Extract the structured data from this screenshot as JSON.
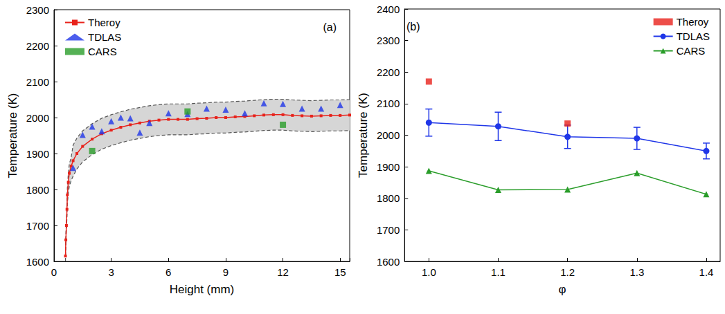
{
  "chart_data": [
    {
      "type": "line",
      "title": "(a)",
      "xlabel": "Height (mm)",
      "ylabel": "Temperature (K)",
      "xlim": [
        0,
        15.5
      ],
      "xticks": [
        0,
        3,
        6,
        9,
        12,
        15
      ],
      "ylim": [
        1600,
        2300
      ],
      "yticks": [
        1600,
        1700,
        1800,
        1900,
        2000,
        2100,
        2200,
        2300
      ],
      "grid": false,
      "legend": "upper left",
      "series": [
        {
          "name": "Theroy",
          "type": "line",
          "color": "#e8221b",
          "marker": "square",
          "line_style": "solid",
          "x": [
            0.6,
            0.62,
            0.65,
            0.68,
            0.7,
            0.75,
            0.8,
            0.9,
            1.0,
            1.2,
            1.5,
            2,
            2.5,
            3,
            3.5,
            4,
            4.5,
            5,
            5.5,
            6,
            6.5,
            7,
            7.5,
            8,
            8.5,
            9,
            9.5,
            10,
            10.5,
            11,
            11.5,
            12,
            12.5,
            13,
            13.5,
            14,
            14.5,
            15,
            15.5
          ],
          "values": [
            1615,
            1660,
            1700,
            1745,
            1785,
            1820,
            1845,
            1865,
            1880,
            1900,
            1920,
            1940,
            1955,
            1965,
            1973,
            1980,
            1985,
            1990,
            1993,
            1995,
            1995,
            1995,
            1997,
            1998,
            2000,
            2000,
            2002,
            2003,
            2005,
            2007,
            2008,
            2008,
            2006,
            2005,
            2004,
            2005,
            2006,
            2006,
            2007
          ],
          "band_lower": [
            1600,
            1645,
            1685,
            1725,
            1760,
            1790,
            1808,
            1825,
            1837,
            1857,
            1877,
            1897,
            1912,
            1922,
            1930,
            1937,
            1942,
            1947,
            1950,
            1952,
            1952,
            1952,
            1954,
            1955,
            1957,
            1957,
            1959,
            1960,
            1962,
            1964,
            1965,
            1965,
            1963,
            1962,
            1961,
            1962,
            1963,
            1963,
            1964
          ],
          "band_upper": [
            1630,
            1675,
            1715,
            1765,
            1805,
            1845,
            1870,
            1890,
            1923,
            1943,
            1963,
            1983,
            1998,
            2008,
            2016,
            2023,
            2028,
            2033,
            2036,
            2038,
            2038,
            2038,
            2040,
            2041,
            2043,
            2043,
            2045,
            2046,
            2048,
            2050,
            2051,
            2051,
            2049,
            2048,
            2047,
            2048,
            2049,
            2049,
            2050
          ]
        },
        {
          "name": "TDLAS",
          "type": "scatter",
          "color": "#1f36e8",
          "marker": "triangle",
          "x": [
            1,
            1.5,
            2,
            2.5,
            3,
            3.5,
            4,
            4.5,
            5,
            6,
            7,
            8,
            9,
            10,
            11,
            12,
            13,
            14,
            15
          ],
          "values": [
            1860,
            1952,
            1975,
            1962,
            1990,
            2000,
            1998,
            1958,
            1985,
            2012,
            2010,
            2025,
            2022,
            2012,
            2040,
            2038,
            2025,
            2025,
            2035
          ]
        },
        {
          "name": "CARS",
          "type": "scatter",
          "color": "#2a9d2a",
          "marker": "square",
          "x": [
            2,
            7,
            12
          ],
          "values": [
            1907,
            2017,
            1980
          ]
        }
      ]
    },
    {
      "type": "line",
      "title": "(b)",
      "xlabel": "φ",
      "ylabel": "Temperature (K)",
      "xlim": [
        0.965,
        1.42
      ],
      "xticks": [
        {
          "value": 1.0,
          "label": "1.0"
        },
        1.1,
        1.2,
        1.3,
        1.4
      ],
      "ylim": [
        1600,
        2400
      ],
      "yticks": [
        1600,
        1700,
        1800,
        1900,
        2000,
        2100,
        2200,
        2300,
        2400
      ],
      "grid": false,
      "legend": "upper right",
      "series": [
        {
          "name": "Theroy",
          "type": "scatter",
          "color": "#e8221b",
          "marker": "square",
          "x": [
            1.0,
            1.2
          ],
          "values": [
            2170,
            2037
          ]
        },
        {
          "name": "TDLAS",
          "type": "line",
          "color": "#1f36e8",
          "marker": "circle",
          "line_style": "solid",
          "x": [
            1.0,
            1.1,
            1.2,
            1.3,
            1.4
          ],
          "values": [
            2040,
            2028,
            1995,
            1990,
            1950
          ],
          "errors": [
            43,
            45,
            37,
            35,
            25
          ]
        },
        {
          "name": "CARS",
          "type": "line",
          "color": "#2a9d2a",
          "marker": "triangle",
          "line_style": "solid",
          "x": [
            1.0,
            1.1,
            1.2,
            1.3,
            1.4
          ],
          "values": [
            1887,
            1827,
            1828,
            1880,
            1813
          ]
        }
      ]
    }
  ]
}
